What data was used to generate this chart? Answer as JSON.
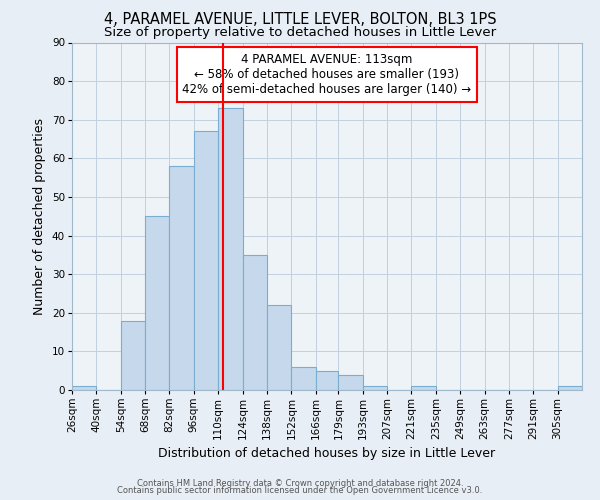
{
  "title1": "4, PARAMEL AVENUE, LITTLE LEVER, BOLTON, BL3 1PS",
  "title2": "Size of property relative to detached houses in Little Lever",
  "xlabel": "Distribution of detached houses by size in Little Lever",
  "ylabel": "Number of detached properties",
  "bin_labels": [
    "26sqm",
    "40sqm",
    "54sqm",
    "68sqm",
    "82sqm",
    "96sqm",
    "110sqm",
    "124sqm",
    "138sqm",
    "152sqm",
    "166sqm",
    "179sqm",
    "193sqm",
    "207sqm",
    "221sqm",
    "235sqm",
    "249sqm",
    "263sqm",
    "277sqm",
    "291sqm",
    "305sqm"
  ],
  "bin_edges": [
    26,
    40,
    54,
    68,
    82,
    96,
    110,
    124,
    138,
    152,
    166,
    179,
    193,
    207,
    221,
    235,
    249,
    263,
    277,
    291,
    305
  ],
  "bar_heights": [
    1,
    0,
    18,
    45,
    58,
    67,
    73,
    35,
    22,
    6,
    5,
    4,
    1,
    0,
    1,
    0,
    0,
    0,
    0,
    0,
    1
  ],
  "bar_color": "#c6d9ec",
  "bar_edge_color": "#7aaed0",
  "vline_x": 113,
  "vline_color": "red",
  "annotation_text": "4 PARAMEL AVENUE: 113sqm\n← 58% of detached houses are smaller (193)\n42% of semi-detached houses are larger (140) →",
  "annotation_box_color": "white",
  "annotation_box_edge": "red",
  "ylim": [
    0,
    90
  ],
  "yticks": [
    0,
    10,
    20,
    30,
    40,
    50,
    60,
    70,
    80,
    90
  ],
  "footer1": "Contains HM Land Registry data © Crown copyright and database right 2024.",
  "footer2": "Contains public sector information licensed under the Open Government Licence v3.0.",
  "bg_color": "#e8eef5",
  "plot_bg_color": "#eef3f8",
  "grid_color": "#c0d0e0",
  "title1_fontsize": 10.5,
  "title2_fontsize": 9.5,
  "annotation_fontsize": 8.5,
  "axis_label_fontsize": 9,
  "tick_fontsize": 7.5,
  "footer_fontsize": 6
}
